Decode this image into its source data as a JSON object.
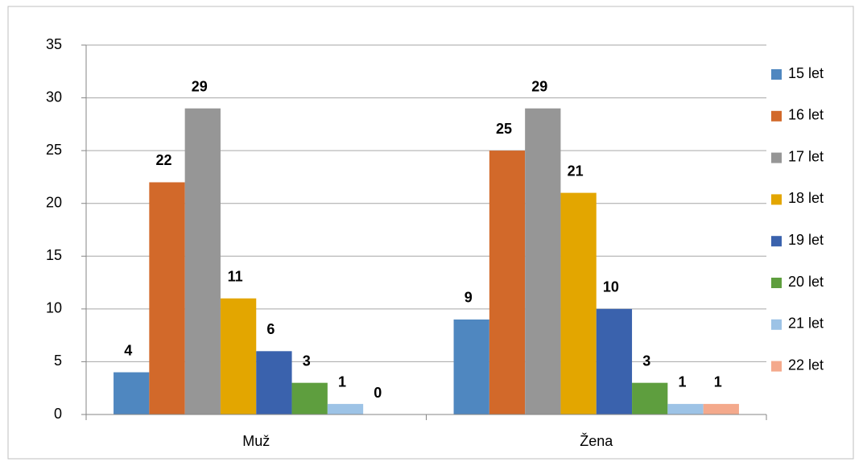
{
  "chart_data": {
    "type": "bar",
    "categories": [
      "Muž",
      "Žena"
    ],
    "series": [
      {
        "name": "15 let",
        "color": "#4f87c0",
        "values": [
          4,
          9
        ]
      },
      {
        "name": "16 let",
        "color": "#d2692a",
        "values": [
          22,
          25
        ]
      },
      {
        "name": "17 let",
        "color": "#969696",
        "values": [
          29,
          29
        ]
      },
      {
        "name": "18 let",
        "color": "#e3a600",
        "values": [
          11,
          21
        ]
      },
      {
        "name": "19 let",
        "color": "#3a62ad",
        "values": [
          6,
          10
        ]
      },
      {
        "name": "20 let",
        "color": "#5e9e3e",
        "values": [
          3,
          3
        ]
      },
      {
        "name": "21 let",
        "color": "#9dc3e6",
        "values": [
          1,
          1
        ]
      },
      {
        "name": "22 let",
        "color": "#f4a98c",
        "values": [
          0,
          1
        ]
      }
    ],
    "ylim": [
      0,
      35
    ],
    "yticks": [
      0,
      5,
      10,
      15,
      20,
      25,
      30,
      35
    ],
    "grid": true,
    "legend": "right"
  }
}
